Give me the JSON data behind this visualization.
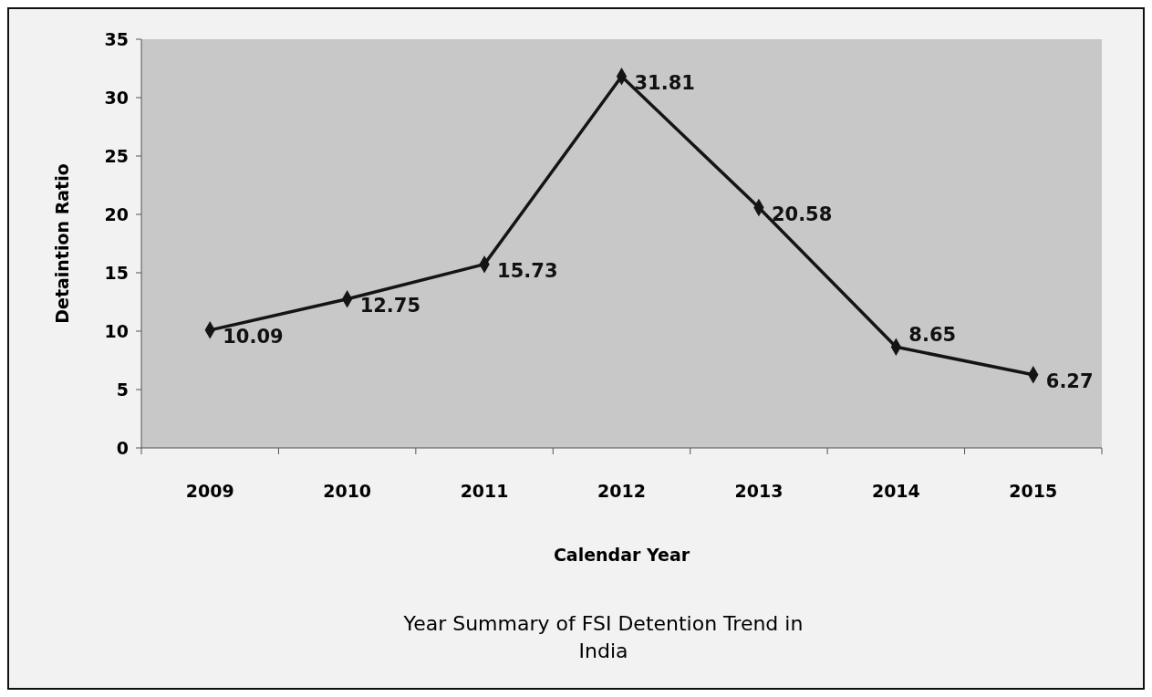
{
  "chart_data": {
    "type": "line",
    "title": "Year Summary of FSI Detention  Trend in India",
    "xlabel": "Calendar Year",
    "ylabel": "Detaintion Ratio",
    "categories": [
      "2009",
      "2010",
      "2011",
      "2012",
      "2013",
      "2014",
      "2015"
    ],
    "series": [
      {
        "color": "#141414",
        "values": [
          10.09,
          12.75,
          15.73,
          31.81,
          20.58,
          8.65,
          6.27
        ]
      }
    ],
    "ylim": [
      0,
      35
    ],
    "yticks": [
      0,
      5,
      10,
      15,
      20,
      25,
      30,
      35
    ],
    "grid": false,
    "marker": "diamond",
    "line_style": "solid",
    "data_labels": true
  }
}
